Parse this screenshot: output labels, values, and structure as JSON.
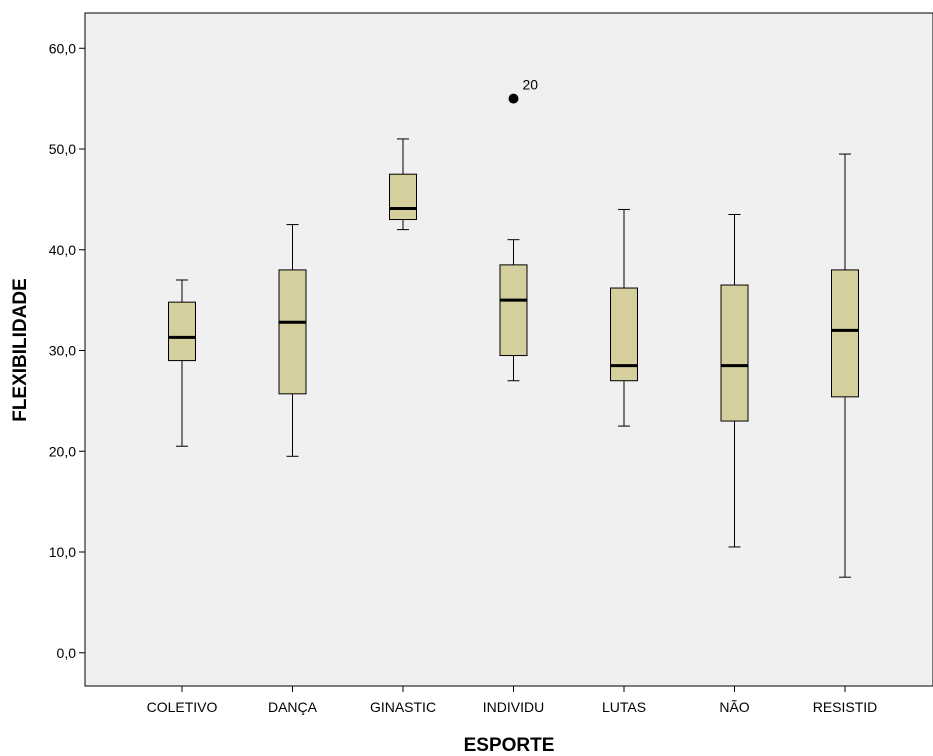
{
  "chart_data": {
    "type": "boxplot",
    "xlabel": "ESPORTE",
    "ylabel": "FLEXIBILIDADE",
    "ylim": [
      -3.3,
      63.5
    ],
    "y_ticks": [
      0,
      10,
      20,
      30,
      40,
      50,
      60
    ],
    "y_tick_labels": [
      "0,0",
      "10,0",
      "20,0",
      "30,0",
      "40,0",
      "50,0",
      "60,0"
    ],
    "grid": false,
    "legend": "none",
    "colors": {
      "plot_background": "#f0f0f0",
      "box_fill": "#d4cf9c",
      "stroke": "#000000"
    },
    "categories": [
      "COLETIVO",
      "DANÇA",
      "GINASTIC",
      "INDIVIDU",
      "LUTAS",
      "NÃO",
      "RESISTID"
    ],
    "boxes": [
      {
        "min": 20.5,
        "q1": 29.0,
        "median": 31.3,
        "q3": 34.8,
        "max": 37.0
      },
      {
        "min": 19.5,
        "q1": 25.7,
        "median": 32.8,
        "q3": 38.0,
        "max": 42.5
      },
      {
        "min": 42.0,
        "q1": 43.0,
        "median": 44.1,
        "q3": 47.5,
        "max": 51.0
      },
      {
        "min": 27.0,
        "q1": 29.5,
        "median": 35.0,
        "q3": 38.5,
        "max": 41.0
      },
      {
        "min": 22.5,
        "q1": 27.0,
        "median": 28.5,
        "q3": 36.2,
        "max": 44.0
      },
      {
        "min": 10.5,
        "q1": 23.0,
        "median": 28.5,
        "q3": 36.5,
        "max": 43.5
      },
      {
        "min": 7.5,
        "q1": 25.4,
        "median": 32.0,
        "q3": 38.0,
        "max": 49.5
      }
    ],
    "outliers": [
      {
        "category": "INDIVIDU",
        "value": 55.0,
        "label": "20"
      }
    ]
  }
}
